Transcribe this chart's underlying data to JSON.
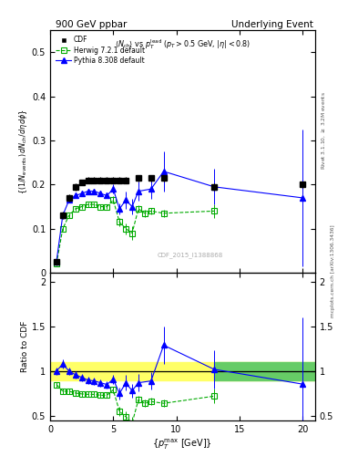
{
  "title_left": "900 GeV ppbar",
  "title_right": "Underlying Event",
  "annotation": "$\\langle N_{ch}\\rangle$ vs $p_T^{lead}$ $(p_T > 0.5$ GeV, $|\\eta| < 0.8)$",
  "watermark": "CDF_2015_I1388868",
  "right_label1": "Rivet 3.1.10, $\\geq$ 3.2M events",
  "right_label2": "mcplots.cern.ch [arXiv:1306.3436]",
  "cdf_x": [
    0.5,
    1.0,
    1.5,
    2.0,
    2.5,
    3.0,
    3.5,
    4.0,
    4.5,
    5.0,
    5.5,
    6.0,
    7.0,
    8.0,
    9.0,
    13.0,
    20.0
  ],
  "cdf_y": [
    0.025,
    0.13,
    0.17,
    0.195,
    0.205,
    0.21,
    0.21,
    0.21,
    0.21,
    0.21,
    0.21,
    0.21,
    0.215,
    0.215,
    0.215,
    0.195,
    0.2
  ],
  "cdf_yerr": [
    0.005,
    0.008,
    0.008,
    0.008,
    0.007,
    0.007,
    0.007,
    0.007,
    0.007,
    0.007,
    0.007,
    0.007,
    0.007,
    0.007,
    0.007,
    0.008,
    0.008
  ],
  "herwig_x": [
    0.5,
    1.0,
    1.5,
    2.0,
    2.5,
    3.0,
    3.5,
    4.0,
    4.5,
    5.0,
    5.5,
    6.0,
    6.5,
    7.0,
    7.5,
    8.0,
    9.0,
    13.0
  ],
  "herwig_y": [
    0.02,
    0.1,
    0.13,
    0.145,
    0.15,
    0.155,
    0.155,
    0.15,
    0.15,
    0.165,
    0.115,
    0.1,
    0.09,
    0.145,
    0.135,
    0.14,
    0.135,
    0.14
  ],
  "herwig_yerr": [
    0.003,
    0.005,
    0.005,
    0.005,
    0.005,
    0.005,
    0.005,
    0.005,
    0.005,
    0.008,
    0.01,
    0.012,
    0.015,
    0.008,
    0.008,
    0.008,
    0.008,
    0.015
  ],
  "pythia_x": [
    0.5,
    1.0,
    1.5,
    2.0,
    2.5,
    3.0,
    3.5,
    4.0,
    4.5,
    5.0,
    5.5,
    6.0,
    6.5,
    7.0,
    8.0,
    9.0,
    13.0,
    20.0
  ],
  "pythia_y": [
    0.025,
    0.13,
    0.165,
    0.175,
    0.18,
    0.185,
    0.185,
    0.18,
    0.175,
    0.19,
    0.145,
    0.165,
    0.15,
    0.185,
    0.19,
    0.23,
    0.195,
    0.17
  ],
  "pythia_yerr": [
    0.003,
    0.006,
    0.006,
    0.006,
    0.006,
    0.006,
    0.006,
    0.006,
    0.006,
    0.01,
    0.012,
    0.02,
    0.018,
    0.022,
    0.022,
    0.045,
    0.04,
    0.155
  ],
  "ratio_herwig_x": [
    0.5,
    1.0,
    1.5,
    2.0,
    2.5,
    3.0,
    3.5,
    4.0,
    4.5,
    5.0,
    5.5,
    6.0,
    6.5,
    7.0,
    7.5,
    8.0,
    9.0,
    13.0
  ],
  "ratio_herwig_y": [
    0.85,
    0.775,
    0.775,
    0.755,
    0.745,
    0.74,
    0.74,
    0.73,
    0.73,
    0.79,
    0.55,
    0.49,
    0.42,
    0.68,
    0.64,
    0.66,
    0.64,
    0.72
  ],
  "ratio_herwig_yerr": [
    0.03,
    0.03,
    0.03,
    0.03,
    0.03,
    0.03,
    0.03,
    0.03,
    0.03,
    0.04,
    0.05,
    0.06,
    0.07,
    0.04,
    0.04,
    0.04,
    0.04,
    0.08
  ],
  "ratio_pythia_x": [
    0.5,
    1.0,
    1.5,
    2.0,
    2.5,
    3.0,
    3.5,
    4.0,
    4.5,
    5.0,
    5.5,
    6.0,
    6.5,
    7.0,
    8.0,
    9.0,
    13.0,
    20.0
  ],
  "ratio_pythia_y": [
    1.0,
    1.08,
    1.0,
    0.96,
    0.93,
    0.9,
    0.89,
    0.87,
    0.85,
    0.91,
    0.75,
    0.87,
    0.78,
    0.87,
    0.89,
    1.29,
    1.02,
    0.855
  ],
  "ratio_pythia_yerr": [
    0.04,
    0.05,
    0.04,
    0.04,
    0.04,
    0.04,
    0.04,
    0.04,
    0.04,
    0.05,
    0.07,
    0.09,
    0.08,
    0.1,
    0.1,
    0.21,
    0.21,
    0.75
  ],
  "ylim_main": [
    0.0,
    0.55
  ],
  "ylim_ratio": [
    0.45,
    2.1
  ],
  "xlim": [
    0.0,
    21.0
  ],
  "cdf_color": "black",
  "herwig_color": "#00aa00",
  "pythia_color": "blue",
  "band_yellow_color": "#ffff66",
  "band_green_color": "#66cc66",
  "band_yellow_xlo": 0.0,
  "band_yellow_xhi": 20.0,
  "band_yellow_ylo": 0.9,
  "band_yellow_yhi": 1.1,
  "band_green_xlo": 13.0,
  "band_green_xhi": 21.0,
  "band_green_ylo": 0.9,
  "band_green_yhi": 1.1
}
